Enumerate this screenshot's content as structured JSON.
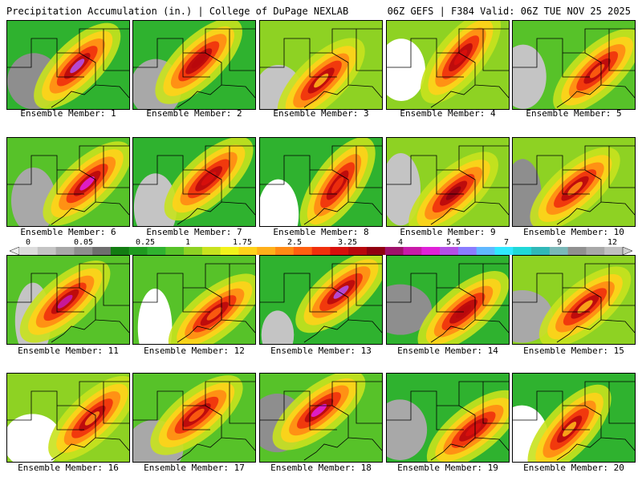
{
  "header": {
    "left_title": "Precipitation Accumulation (in.) | College of DuPage NEXLAB",
    "right_title": "06Z GEFS | F384 Valid: 06Z TUE NOV 25 2025"
  },
  "colorbar": {
    "ticks": [
      "0",
      "0.05",
      "0.25",
      "1",
      "1.75",
      "2.5",
      "3.25",
      "4",
      "5.5",
      "7",
      "9",
      "12"
    ],
    "colors": [
      "#dcdcdc",
      "#c4c4c4",
      "#a8a8a8",
      "#8e8e8e",
      "#6e6e6e",
      "#127c12",
      "#1f9a1f",
      "#2fb22f",
      "#57c229",
      "#8ed223",
      "#c8e21e",
      "#f2f21a",
      "#ffd21a",
      "#ffb01a",
      "#ff8a14",
      "#ff6010",
      "#f0300c",
      "#d8100c",
      "#b8080c",
      "#900010",
      "#a0106a",
      "#c81aa8",
      "#e020d8",
      "#b44ee6",
      "#8a7cff",
      "#60b8ff",
      "#30e8ff",
      "#20d8d8",
      "#30b8b8",
      "#7ab8b8",
      "#909090",
      "#a8a8a8",
      "#c0c0c0"
    ]
  },
  "panel_label_prefix": "Ensemble Member: ",
  "panels": [
    {
      "member": "1"
    },
    {
      "member": "2"
    },
    {
      "member": "3"
    },
    {
      "member": "4"
    },
    {
      "member": "5"
    },
    {
      "member": "6"
    },
    {
      "member": "7"
    },
    {
      "member": "8"
    },
    {
      "member": "9"
    },
    {
      "member": "10"
    },
    {
      "member": "11"
    },
    {
      "member": "12"
    },
    {
      "member": "13"
    },
    {
      "member": "14"
    },
    {
      "member": "15"
    },
    {
      "member": "16"
    },
    {
      "member": "17"
    },
    {
      "member": "18"
    },
    {
      "member": "19"
    },
    {
      "member": "20"
    }
  ]
}
